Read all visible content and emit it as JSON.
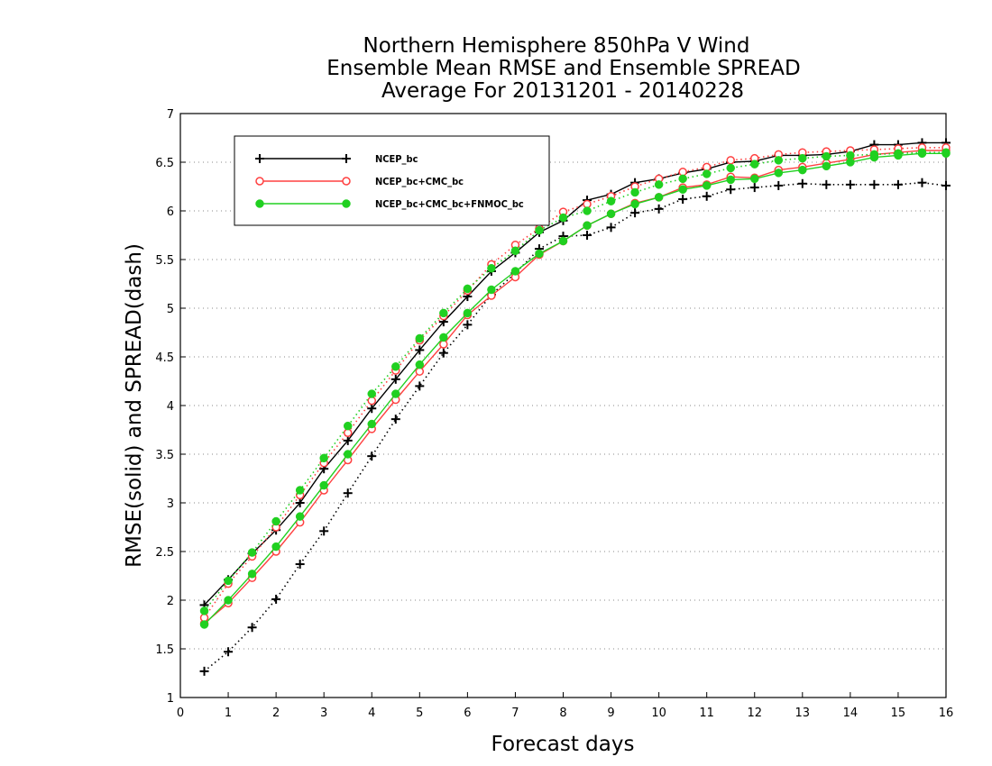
{
  "chart_data": {
    "type": "line",
    "title": [
      "Northern Hemisphere 850hPa V Wind",
      "Ensemble Mean RMSE and Ensemble SPREAD",
      "Average For 20131201 - 20140228"
    ],
    "xlabel": "Forecast days",
    "ylabel": "RMSE(solid) and SPREAD(dash)",
    "xlim": [
      0,
      16
    ],
    "ylim": [
      1,
      7
    ],
    "xticks": [
      "0",
      "1",
      "2",
      "3",
      "4",
      "5",
      "6",
      "7",
      "8",
      "9",
      "10",
      "11",
      "12",
      "13",
      "14",
      "15",
      "16"
    ],
    "yticks": [
      "1",
      "1.5",
      "2",
      "2.5",
      "3",
      "3.5",
      "4",
      "4.5",
      "5",
      "5.5",
      "6",
      "6.5",
      "7"
    ],
    "grid": "horizontal dotted",
    "legend_position": "top-left",
    "x": [
      0.5,
      1,
      1.5,
      2,
      2.5,
      3,
      3.5,
      4,
      4.5,
      5,
      5.5,
      6,
      6.5,
      7,
      7.5,
      8,
      8.5,
      9,
      9.5,
      10,
      10.5,
      11,
      11.5,
      12,
      12.5,
      13,
      13.5,
      14,
      14.5,
      15,
      15.5,
      16
    ],
    "series": [
      {
        "name": "NCEP_bc",
        "color": "#000000",
        "marker": "plus",
        "rmse": [
          1.95,
          2.21,
          2.48,
          2.72,
          3.0,
          3.35,
          3.64,
          3.97,
          4.27,
          4.57,
          4.86,
          5.12,
          5.38,
          5.57,
          5.78,
          5.9,
          6.11,
          6.17,
          6.29,
          6.33,
          6.39,
          6.43,
          6.5,
          6.51,
          6.57,
          6.57,
          6.58,
          6.61,
          6.68,
          6.68,
          6.7,
          6.7
        ],
        "spread": [
          1.27,
          1.47,
          1.72,
          2.01,
          2.37,
          2.71,
          3.1,
          3.48,
          3.86,
          4.2,
          4.54,
          4.83,
          5.14,
          5.36,
          5.61,
          5.74,
          5.75,
          5.83,
          5.98,
          6.02,
          6.12,
          6.15,
          6.22,
          6.24,
          6.26,
          6.28,
          6.27,
          6.27,
          6.27,
          6.27,
          6.29,
          6.26
        ]
      },
      {
        "name": "NCEP_bc+CMC_bc",
        "color": "#ff4040",
        "marker": "open-circle",
        "rmse": [
          1.76,
          1.97,
          2.23,
          2.5,
          2.8,
          3.13,
          3.44,
          3.76,
          4.06,
          4.35,
          4.63,
          4.93,
          5.13,
          5.32,
          5.55,
          5.69,
          5.85,
          5.97,
          6.08,
          6.14,
          6.24,
          6.27,
          6.35,
          6.34,
          6.42,
          6.45,
          6.49,
          6.53,
          6.58,
          6.6,
          6.62,
          6.62
        ],
        "spread": [
          1.82,
          2.17,
          2.45,
          2.75,
          3.08,
          3.41,
          3.72,
          4.05,
          4.36,
          4.67,
          4.92,
          5.18,
          5.45,
          5.65,
          5.82,
          5.99,
          6.07,
          6.15,
          6.25,
          6.33,
          6.4,
          6.45,
          6.52,
          6.54,
          6.58,
          6.6,
          6.61,
          6.62,
          6.63,
          6.64,
          6.65,
          6.65
        ]
      },
      {
        "name": "NCEP_bc+CMC_bc+FNMOC_bc",
        "color": "#20d020",
        "marker": "filled-circle",
        "rmse": [
          1.75,
          2.0,
          2.27,
          2.55,
          2.86,
          3.18,
          3.5,
          3.81,
          4.12,
          4.42,
          4.7,
          4.95,
          5.19,
          5.38,
          5.56,
          5.69,
          5.85,
          5.97,
          6.07,
          6.14,
          6.22,
          6.26,
          6.32,
          6.33,
          6.39,
          6.42,
          6.46,
          6.5,
          6.55,
          6.57,
          6.59,
          6.59
        ],
        "spread": [
          1.89,
          2.2,
          2.49,
          2.81,
          3.13,
          3.46,
          3.79,
          4.12,
          4.4,
          4.69,
          4.95,
          5.2,
          5.41,
          5.59,
          5.8,
          5.93,
          6.0,
          6.1,
          6.19,
          6.27,
          6.33,
          6.38,
          6.44,
          6.48,
          6.52,
          6.54,
          6.56,
          6.57,
          6.58,
          6.59,
          6.6,
          6.6
        ]
      }
    ]
  }
}
